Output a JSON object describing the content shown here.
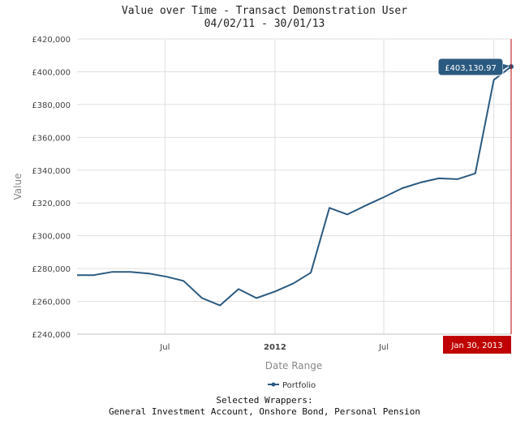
{
  "header": {
    "title": "Value over Time - Transact Demonstration User",
    "subtitle": "04/02/11 - 30/01/13"
  },
  "legend": {
    "label": "Portfolio"
  },
  "footer": {
    "line1": "Selected Wrappers:",
    "line2": "General Investment Account, Onshore Bond, Personal Pension"
  },
  "tooltip": {
    "value_label": "£403,130.97"
  },
  "crosshair": {
    "date_label": "Jan 30, 2013"
  },
  "colors": {
    "series": "#2b5a80",
    "grid": "#e0e0e0",
    "crosshair": "#c00000",
    "tooltip_bg": "#2b5a80"
  },
  "chart_data": {
    "type": "line",
    "title": "Value over Time - Transact Demonstration User",
    "subtitle": "04/02/11 - 30/01/13",
    "xlabel": "Date Range",
    "ylabel": "Value",
    "ylim": [
      240000,
      420000
    ],
    "yticks": [
      240000,
      260000,
      280000,
      300000,
      320000,
      340000,
      360000,
      380000,
      400000,
      420000
    ],
    "ytick_labels": [
      "£240,000",
      "£260,000",
      "£280,000",
      "£300,000",
      "£320,000",
      "£340,000",
      "£360,000",
      "£380,000",
      "£400,000",
      "£420,000"
    ],
    "xlim": [
      "2011-02-04",
      "2013-01-30"
    ],
    "xticks": [
      {
        "date": "2011-07-01",
        "label": "Jul",
        "bold": false
      },
      {
        "date": "2012-01-01",
        "label": "2012",
        "bold": true
      },
      {
        "date": "2012-07-01",
        "label": "Jul",
        "bold": false
      },
      {
        "date": "2013-01-01",
        "label": "2013",
        "bold": true
      }
    ],
    "grid": true,
    "legend_position": "bottom",
    "series": [
      {
        "name": "Portfolio",
        "x": [
          "2011-02-04",
          "2011-03-04",
          "2011-04-04",
          "2011-05-04",
          "2011-06-04",
          "2011-07-04",
          "2011-08-01",
          "2011-09-01",
          "2011-10-01",
          "2011-11-01",
          "2011-12-01",
          "2012-01-01",
          "2012-02-01",
          "2012-03-01",
          "2012-04-01",
          "2012-05-01",
          "2012-06-01",
          "2012-07-01",
          "2012-08-01",
          "2012-09-01",
          "2012-10-01",
          "2012-11-01",
          "2012-12-01",
          "2013-01-01",
          "2013-01-30"
        ],
        "values": [
          276000,
          276000,
          278000,
          278000,
          277000,
          275000,
          272500,
          262000,
          257500,
          267500,
          262000,
          266000,
          271000,
          277500,
          317000,
          313000,
          318500,
          323500,
          329000,
          332500,
          335000,
          334500,
          338000,
          395000,
          403130.97
        ]
      }
    ],
    "annotations": [
      {
        "type": "tooltip",
        "x": "2013-01-30",
        "text": "£403,130.97"
      },
      {
        "type": "crosshair",
        "x": "2013-01-30",
        "text": "Jan 30, 2013"
      }
    ]
  }
}
